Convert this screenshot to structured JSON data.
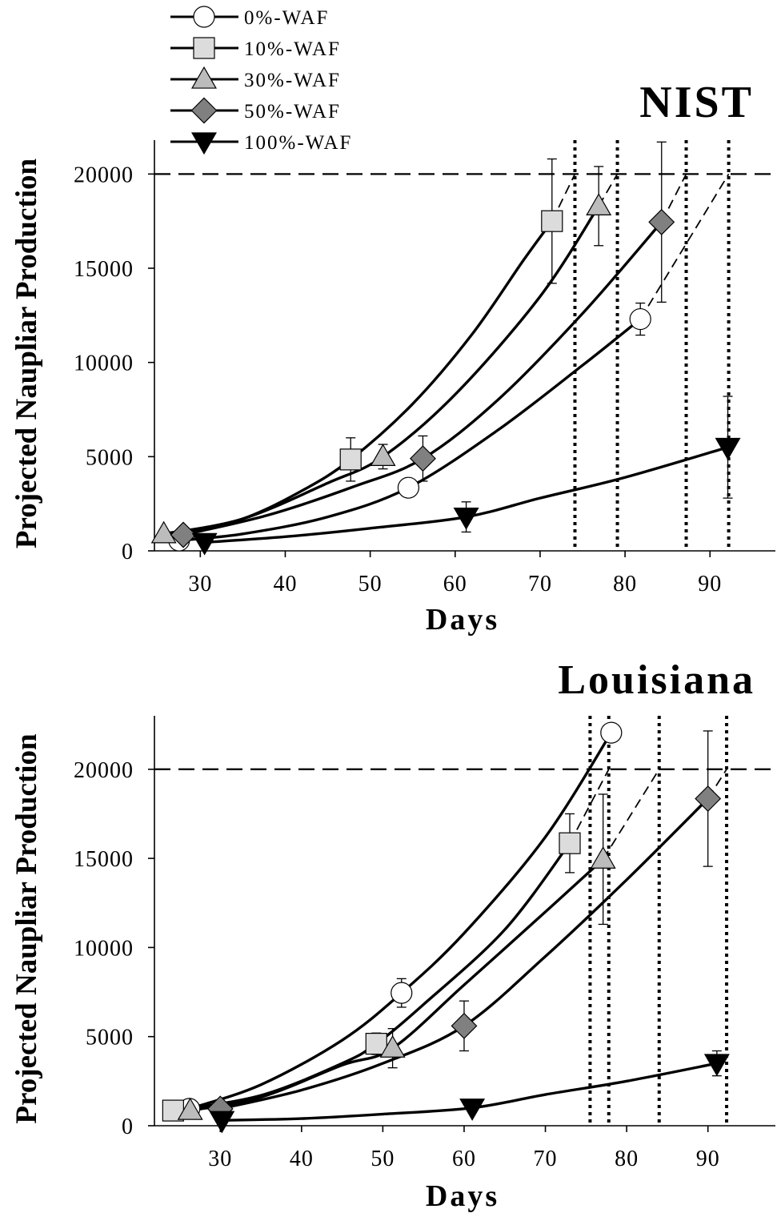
{
  "legend": {
    "placement": "top-left",
    "entries": [
      {
        "label": "0%-WAF",
        "marker": "circle",
        "fill": "#ffffff"
      },
      {
        "label": "10%-WAF",
        "marker": "square",
        "fill": "#dcdcdc"
      },
      {
        "label": "30%-WAF",
        "marker": "triangle-up",
        "fill": "#bcbcbc"
      },
      {
        "label": "50%-WAF",
        "marker": "diamond",
        "fill": "#808080"
      },
      {
        "label": "100%-WAF",
        "marker": "triangle-down",
        "fill": "#000000"
      }
    ]
  },
  "chart_data": [
    {
      "type": "line",
      "title": "NIST",
      "xlabel": "Days",
      "ylabel": "Projected Naupliar Production",
      "xlim": [
        24.6,
        97.7
      ],
      "ylim": [
        0,
        21800
      ],
      "xticks": [
        30,
        40,
        50,
        60,
        70,
        80,
        90
      ],
      "yticks": [
        0,
        5000,
        10000,
        15000,
        20000
      ],
      "reference_line_y": 20000,
      "vertical_lines_x": [
        74.1,
        79.1,
        87.2,
        92.2
      ],
      "series": [
        {
          "name": "0%-WAF",
          "x": [
            27.5,
            54.5,
            81.8
          ],
          "y": [
            550,
            3350,
            12300
          ],
          "err": [
            null,
            null,
            850
          ],
          "curve": [
            [
              27.5,
              550
            ],
            [
              35,
              900
            ],
            [
              45,
              1800
            ],
            [
              54.5,
              3350
            ],
            [
              65,
              6400
            ],
            [
              75,
              9850
            ],
            [
              81.8,
              12300
            ]
          ],
          "extrap": [
            [
              81.8,
              12300
            ],
            [
              92.2,
              20000
            ]
          ]
        },
        {
          "name": "10%-WAF",
          "x": [
            47.7,
            71.4
          ],
          "y": [
            4850,
            17500
          ],
          "err": [
            1150,
            3300
          ],
          "curve": [
            [
              27.5,
              900
            ],
            [
              35,
              1700
            ],
            [
              42,
              3200
            ],
            [
              47.7,
              4850
            ],
            [
              55,
              7800
            ],
            [
              62,
              11500
            ],
            [
              68,
              15400
            ],
            [
              71.4,
              17500
            ]
          ],
          "extrap": [
            [
              71.4,
              17500
            ],
            [
              74.1,
              20000
            ]
          ]
        },
        {
          "name": "30%-WAF",
          "x": [
            25.7,
            51.5,
            76.9
          ],
          "y": [
            900,
            5000,
            18300
          ],
          "err": [
            null,
            650,
            2100
          ],
          "curve": [
            [
              25.7,
              900
            ],
            [
              35,
              1700
            ],
            [
              45,
              3600
            ],
            [
              51.5,
              5000
            ],
            [
              60,
              8300
            ],
            [
              70,
              13500
            ],
            [
              76.9,
              18300
            ]
          ],
          "extrap": [
            [
              76.9,
              18300
            ],
            [
              79.1,
              20000
            ]
          ]
        },
        {
          "name": "50%-WAF",
          "x": [
            28,
            56.2,
            84.3
          ],
          "y": [
            850,
            4900,
            17450
          ],
          "err": [
            null,
            1200,
            4250
          ],
          "curve": [
            [
              28,
              850
            ],
            [
              38,
              1900
            ],
            [
              48,
              3400
            ],
            [
              56.2,
              4900
            ],
            [
              65,
              8000
            ],
            [
              75,
              12600
            ],
            [
              84.3,
              17450
            ]
          ],
          "extrap": [
            [
              84.3,
              17450
            ],
            [
              87.2,
              20000
            ]
          ]
        },
        {
          "name": "100%-WAF",
          "x": [
            30.5,
            61.3,
            92.1
          ],
          "y": [
            450,
            1800,
            5500
          ],
          "err": [
            null,
            800,
            2700
          ],
          "curve": [
            [
              30.5,
              450
            ],
            [
              40,
              750
            ],
            [
              50,
              1200
            ],
            [
              61.3,
              1800
            ],
            [
              70,
              2800
            ],
            [
              80,
              3900
            ],
            [
              92.1,
              5500
            ]
          ],
          "extrap": []
        }
      ]
    },
    {
      "type": "line",
      "title": "Louisiana",
      "xlabel": "Days",
      "ylabel": "Projected Naupliar Production",
      "xlim": [
        21.9,
        98.3
      ],
      "ylim": [
        0,
        23000
      ],
      "xticks": [
        30,
        40,
        50,
        60,
        70,
        80,
        90
      ],
      "yticks": [
        0,
        5000,
        10000,
        15000,
        20000
      ],
      "reference_line_y": 20000,
      "vertical_lines_x": [
        75.5,
        77.8,
        84,
        92.3
      ],
      "series": [
        {
          "name": "0%-WAF",
          "x": [
            26.2,
            52.3,
            78.1
          ],
          "y": [
            950,
            7450,
            22050
          ],
          "err": [
            null,
            800,
            null
          ],
          "curve": [
            [
              26.2,
              950
            ],
            [
              35,
              2300
            ],
            [
              45,
              4800
            ],
            [
              52.3,
              7450
            ],
            [
              60,
              10800
            ],
            [
              70,
              16200
            ],
            [
              78.1,
              22050
            ]
          ],
          "extrap": []
        },
        {
          "name": "10%-WAF",
          "x": [
            24.2,
            49.2,
            73
          ],
          "y": [
            850,
            4600,
            15850
          ],
          "err": [
            null,
            600,
            1650
          ],
          "curve": [
            [
              24.2,
              850
            ],
            [
              35,
              1700
            ],
            [
              45,
              3500
            ],
            [
              49.2,
              4600
            ],
            [
              55,
              6800
            ],
            [
              65,
              11000
            ],
            [
              73,
              15850
            ]
          ],
          "extrap": [
            [
              73,
              15850
            ],
            [
              77.8,
              20000
            ]
          ]
        },
        {
          "name": "30%-WAF",
          "x": [
            26.3,
            51.2,
            77.1
          ],
          "y": [
            850,
            4350,
            14950
          ],
          "err": [
            null,
            1100,
            3650
          ],
          "curve": [
            [
              26.3,
              850
            ],
            [
              35,
              1600
            ],
            [
              45,
              3400
            ],
            [
              51.2,
              4350
            ],
            [
              60,
              7900
            ],
            [
              70,
              12000
            ],
            [
              77.1,
              14950
            ]
          ],
          "extrap": [
            [
              77.1,
              14950
            ],
            [
              84,
              20000
            ]
          ]
        },
        {
          "name": "50%-WAF",
          "x": [
            30,
            60,
            90
          ],
          "y": [
            950,
            5600,
            18350
          ],
          "err": [
            null,
            1400,
            3800
          ],
          "curve": [
            [
              30,
              950
            ],
            [
              40,
              2000
            ],
            [
              50,
              3500
            ],
            [
              60,
              5600
            ],
            [
              70,
              9500
            ],
            [
              80,
              13800
            ],
            [
              90,
              18350
            ]
          ],
          "extrap": [
            [
              90,
              18350
            ],
            [
              92.3,
              20000
            ]
          ]
        },
        {
          "name": "100%-WAF",
          "x": [
            30.2,
            61,
            91.1
          ],
          "y": [
            300,
            1000,
            3500
          ],
          "err": [
            null,
            null,
            700
          ],
          "curve": [
            [
              30.2,
              300
            ],
            [
              40,
              400
            ],
            [
              50,
              650
            ],
            [
              61,
              1000
            ],
            [
              70,
              1750
            ],
            [
              80,
              2500
            ],
            [
              91.1,
              3500
            ]
          ],
          "extrap": []
        }
      ]
    }
  ]
}
